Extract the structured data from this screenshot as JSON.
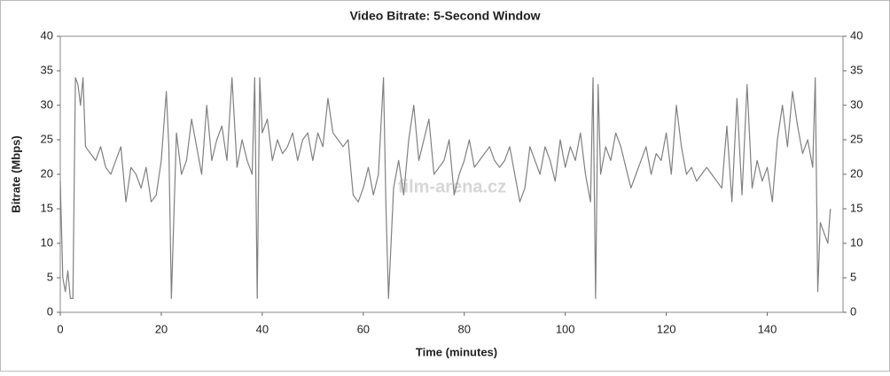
{
  "chart_data": {
    "type": "line",
    "title": "Video Bitrate: 5-Second Window",
    "x_label": "Time (minutes)",
    "y_label": "Bitrate (Mbps)",
    "watermark": "film-arena.cz",
    "xlim": [
      0,
      155
    ],
    "xticks": [
      0,
      20,
      40,
      60,
      80,
      100,
      120,
      140
    ],
    "ylim": [
      0,
      40
    ],
    "yticks": [
      0,
      5,
      10,
      15,
      20,
      25,
      30,
      35,
      40
    ],
    "y2lim": [
      0,
      40
    ],
    "y2ticks": [
      0,
      5,
      10,
      15,
      20,
      25,
      30,
      35,
      40
    ],
    "grid": false,
    "x": [
      0,
      0.5,
      1,
      1.5,
      2,
      2.5,
      3,
      3.5,
      4,
      4.5,
      5,
      6,
      7,
      8,
      9,
      10,
      11,
      12,
      13,
      14,
      15,
      16,
      17,
      18,
      19,
      20,
      21,
      21.5,
      22,
      23,
      24,
      25,
      26,
      27,
      28,
      29,
      30,
      31,
      32,
      33,
      34,
      35,
      36,
      37,
      38,
      38.5,
      39,
      39.5,
      40,
      41,
      42,
      43,
      44,
      45,
      46,
      47,
      48,
      49,
      50,
      51,
      52,
      53,
      54,
      55,
      56,
      57,
      58,
      59,
      60,
      61,
      62,
      63,
      64,
      64.5,
      65,
      66,
      67,
      68,
      69,
      70,
      71,
      72,
      73,
      74,
      75,
      76,
      77,
      78,
      79,
      80,
      81,
      82,
      83,
      84,
      85,
      86,
      87,
      88,
      89,
      90,
      91,
      92,
      93,
      94,
      95,
      96,
      97,
      98,
      99,
      100,
      101,
      102,
      103,
      104,
      105,
      105.5,
      106,
      106.5,
      107,
      108,
      109,
      110,
      111,
      112,
      113,
      114,
      115,
      116,
      117,
      118,
      119,
      120,
      121,
      122,
      123,
      124,
      125,
      126,
      127,
      128,
      129,
      130,
      131,
      132,
      133,
      134,
      135,
      136,
      137,
      138,
      139,
      140,
      141,
      142,
      143,
      144,
      145,
      146,
      147,
      148,
      149,
      149.5,
      150,
      150.5,
      151,
      152,
      152.5
    ],
    "series": [
      {
        "name": "Bitrate",
        "color": "#808080",
        "axis": "y",
        "values": [
          19,
          5,
          3,
          6,
          2,
          2,
          34,
          33,
          30,
          34,
          24,
          23,
          22,
          24,
          21,
          20,
          22,
          24,
          16,
          21,
          20,
          18,
          21,
          16,
          17,
          22,
          32,
          24,
          2,
          26,
          20,
          22,
          28,
          24,
          20,
          30,
          22,
          25,
          27,
          22,
          34,
          21,
          25,
          22,
          20,
          34,
          2,
          34,
          26,
          28,
          22,
          25,
          23,
          24,
          26,
          22,
          25,
          26,
          22,
          26,
          24,
          31,
          26,
          25,
          24,
          25,
          17,
          16,
          18,
          21,
          17,
          20,
          34,
          15,
          2,
          18,
          22,
          17,
          25,
          30,
          22,
          25,
          28,
          20,
          21,
          22,
          25,
          17,
          20,
          22,
          25,
          21,
          22,
          23,
          24,
          22,
          21,
          22,
          24,
          20,
          16,
          18,
          24,
          22,
          20,
          24,
          22,
          19,
          25,
          21,
          24,
          22,
          26,
          20,
          16,
          34,
          2,
          33,
          20,
          24,
          22,
          26,
          24,
          21,
          18,
          20,
          22,
          24,
          20,
          23,
          22,
          26,
          20,
          30,
          24,
          20,
          21,
          19,
          20,
          21,
          20,
          19,
          18,
          27,
          16,
          31,
          17,
          33,
          18,
          22,
          19,
          21,
          16,
          25,
          30,
          24,
          32,
          27,
          23,
          25,
          21,
          34,
          3,
          13,
          12,
          10,
          15
        ]
      }
    ]
  }
}
